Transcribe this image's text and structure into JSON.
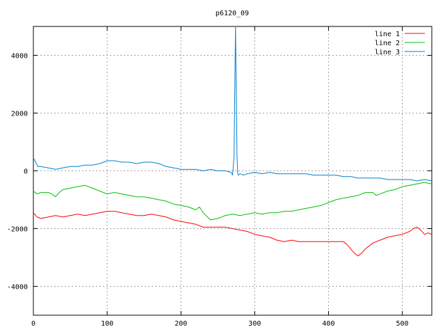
{
  "chart_data": {
    "type": "line",
    "title": "p6120_09",
    "xlabel": "",
    "ylabel": "",
    "xlim": [
      0,
      540
    ],
    "ylim": [
      -5000,
      5000
    ],
    "xticks": [
      0,
      100,
      200,
      300,
      400,
      500
    ],
    "yticks": [
      -4000,
      -2000,
      0,
      2000,
      4000
    ],
    "grid": true,
    "legend_position": "top-right",
    "series": [
      {
        "name": "line 1",
        "color": "#ff0000",
        "x": [
          0,
          5,
          10,
          20,
          30,
          40,
          50,
          60,
          70,
          80,
          90,
          100,
          110,
          120,
          130,
          140,
          150,
          160,
          170,
          180,
          190,
          200,
          210,
          220,
          230,
          240,
          250,
          260,
          270,
          280,
          290,
          300,
          310,
          320,
          330,
          340,
          350,
          360,
          370,
          380,
          390,
          400,
          410,
          420,
          425,
          430,
          435,
          440,
          445,
          450,
          460,
          470,
          480,
          490,
          500,
          510,
          515,
          520,
          525,
          530,
          535,
          540
        ],
        "y": [
          -1450,
          -1600,
          -1650,
          -1600,
          -1550,
          -1600,
          -1550,
          -1500,
          -1550,
          -1500,
          -1450,
          -1400,
          -1400,
          -1450,
          -1500,
          -1550,
          -1550,
          -1500,
          -1550,
          -1600,
          -1700,
          -1750,
          -1800,
          -1850,
          -1950,
          -1950,
          -1950,
          -1950,
          -2000,
          -2050,
          -2100,
          -2200,
          -2250,
          -2300,
          -2400,
          -2450,
          -2400,
          -2450,
          -2450,
          -2450,
          -2450,
          -2450,
          -2450,
          -2450,
          -2550,
          -2700,
          -2850,
          -2950,
          -2850,
          -2700,
          -2500,
          -2400,
          -2300,
          -2250,
          -2200,
          -2100,
          -2000,
          -1950,
          -2050,
          -2200,
          -2150,
          -2200
        ]
      },
      {
        "name": "line 2",
        "color": "#00c000",
        "x": [
          0,
          5,
          10,
          20,
          25,
          30,
          35,
          40,
          50,
          60,
          70,
          80,
          90,
          100,
          110,
          120,
          130,
          140,
          150,
          160,
          170,
          180,
          190,
          200,
          210,
          220,
          225,
          230,
          240,
          250,
          260,
          270,
          280,
          290,
          300,
          310,
          320,
          330,
          340,
          350,
          360,
          370,
          380,
          390,
          400,
          410,
          420,
          430,
          440,
          450,
          460,
          465,
          470,
          480,
          490,
          500,
          510,
          520,
          530,
          540
        ],
        "y": [
          -700,
          -800,
          -750,
          -750,
          -800,
          -900,
          -750,
          -650,
          -600,
          -550,
          -500,
          -600,
          -700,
          -800,
          -750,
          -800,
          -850,
          -900,
          -900,
          -950,
          -1000,
          -1050,
          -1150,
          -1200,
          -1250,
          -1350,
          -1250,
          -1450,
          -1700,
          -1650,
          -1550,
          -1500,
          -1550,
          -1500,
          -1450,
          -1500,
          -1450,
          -1450,
          -1400,
          -1400,
          -1350,
          -1300,
          -1250,
          -1200,
          -1100,
          -1000,
          -950,
          -900,
          -850,
          -750,
          -750,
          -850,
          -800,
          -700,
          -650,
          -550,
          -500,
          -450,
          -400,
          -450
        ]
      },
      {
        "name": "line 3",
        "color": "#0080d0",
        "x": [
          0,
          3,
          6,
          10,
          20,
          30,
          40,
          50,
          60,
          70,
          80,
          90,
          100,
          110,
          120,
          130,
          140,
          150,
          160,
          170,
          180,
          190,
          200,
          210,
          220,
          230,
          240,
          250,
          260,
          268,
          270,
          272,
          273,
          274,
          275,
          276,
          277,
          278,
          280,
          285,
          290,
          300,
          310,
          320,
          330,
          340,
          350,
          360,
          370,
          380,
          390,
          400,
          410,
          420,
          430,
          440,
          450,
          460,
          470,
          480,
          490,
          500,
          510,
          520,
          530,
          540
        ],
        "y": [
          450,
          300,
          150,
          150,
          100,
          50,
          100,
          150,
          150,
          200,
          200,
          250,
          350,
          350,
          300,
          300,
          250,
          300,
          300,
          250,
          150,
          100,
          50,
          50,
          50,
          0,
          50,
          0,
          0,
          -50,
          -150,
          500,
          2900,
          5000,
          2700,
          500,
          -100,
          -150,
          -100,
          -150,
          -100,
          -50,
          -100,
          -50,
          -100,
          -100,
          -100,
          -100,
          -100,
          -150,
          -150,
          -150,
          -150,
          -200,
          -200,
          -250,
          -250,
          -250,
          -250,
          -300,
          -300,
          -300,
          -300,
          -350,
          -300,
          -350
        ]
      }
    ]
  }
}
